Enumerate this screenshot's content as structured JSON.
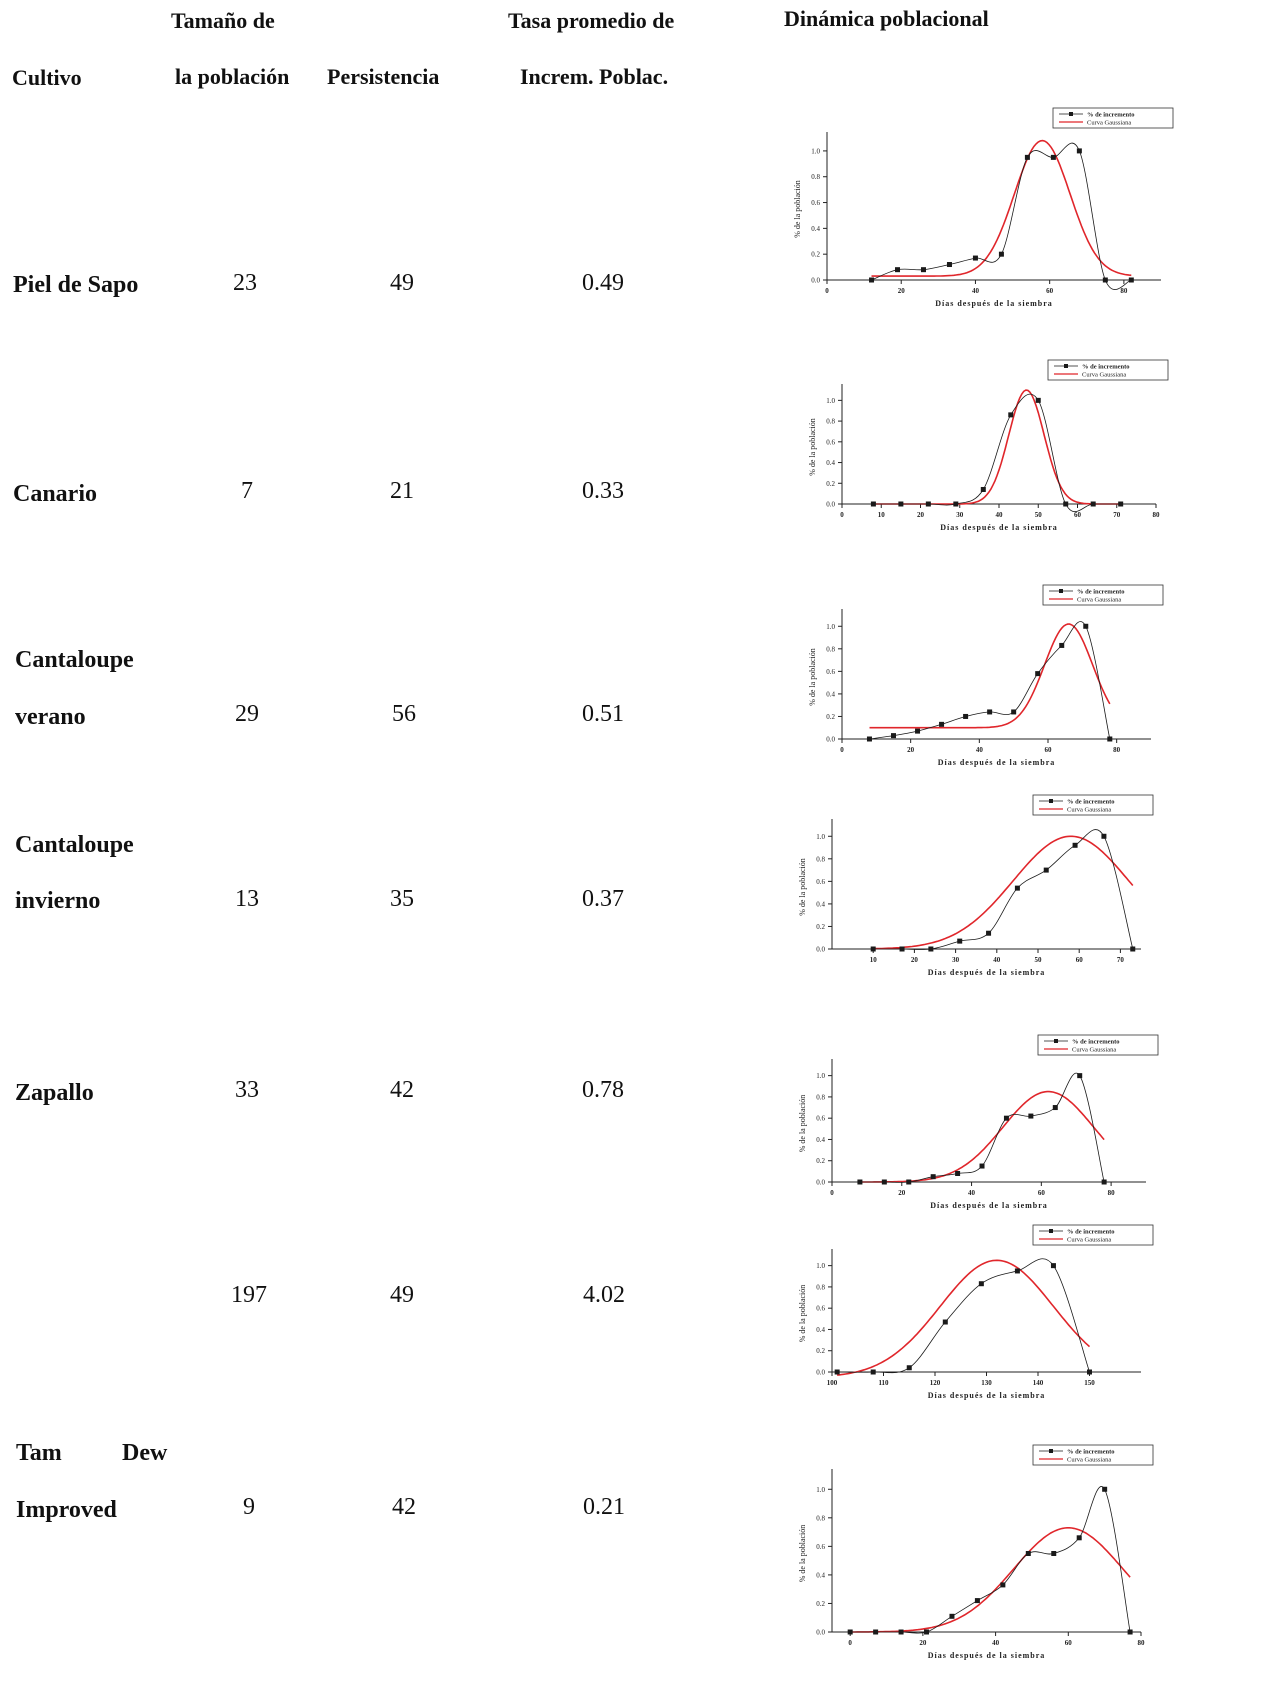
{
  "headers": {
    "cultivo": "Cultivo",
    "tamano_1": "Tamaño de",
    "tamano_2": "la población",
    "persistencia": "Persistencia",
    "tasa_1": "Tasa promedio de",
    "tasa_2": "Increm. Poblac.",
    "dinamica": "Dinámica poblacional"
  },
  "rows": [
    {
      "crop_1": "Piel de Sapo",
      "crop_2": "",
      "size": "23",
      "persistence": "49",
      "rate": "0.49"
    },
    {
      "crop_1": "Canario",
      "crop_2": "",
      "size": "7",
      "persistence": "21",
      "rate": "0.33"
    },
    {
      "crop_1": "Cantaloupe",
      "crop_2": "verano",
      "size": "29",
      "persistence": "56",
      "rate": "0.51"
    },
    {
      "crop_1": "Cantaloupe",
      "crop_2": "invierno",
      "size": "13",
      "persistence": "35",
      "rate": "0.37"
    },
    {
      "crop_1": "Zapallo",
      "crop_2": "",
      "size": "33",
      "persistence": "42",
      "rate": "0.78"
    },
    {
      "crop_1": "",
      "crop_2": "",
      "size": "197",
      "persistence": "49",
      "rate": "4.02"
    },
    {
      "crop_1": "Tam",
      "crop_1b": "Dew",
      "crop_2": "Improved",
      "size": "9",
      "persistence": "42",
      "rate": "0.21"
    }
  ],
  "colors": {
    "series1": "#1a1a1a",
    "series2": "#e0262b"
  },
  "chart_data": [
    {
      "type": "line",
      "xlabel": "Días después de la siembra",
      "ylabel": "% de la población",
      "xlim": [
        0,
        90
      ],
      "ylim": [
        0,
        1.1
      ],
      "xticks": [
        "0",
        "20",
        "40",
        "60",
        "80"
      ],
      "yticks": [
        "0.0",
        "0.2",
        "0.4",
        "0.6",
        "0.8",
        "1.0"
      ],
      "legend": [
        "% de incremento",
        "Curva Gaussiana"
      ],
      "points": [
        [
          12,
          0
        ],
        [
          19,
          0.08
        ],
        [
          26,
          0.08
        ],
        [
          33,
          0.12
        ],
        [
          40,
          0.17
        ],
        [
          47,
          0.2
        ],
        [
          54,
          0.95
        ],
        [
          61,
          0.95
        ],
        [
          68,
          1.0
        ],
        [
          75,
          0
        ],
        [
          82,
          0
        ]
      ],
      "gauss": {
        "y0": 0.03,
        "A": 1.05,
        "xc": 58,
        "w": 15
      }
    },
    {
      "type": "line",
      "xlabel": "Días después de la siembra",
      "ylabel": "% de la población",
      "xlim": [
        0,
        80
      ],
      "ylim": [
        0,
        1.1
      ],
      "xticks": [
        "0",
        "10",
        "20",
        "30",
        "40",
        "50",
        "60",
        "70",
        "80"
      ],
      "yticks": [
        "0.0",
        "0.2",
        "0.4",
        "0.6",
        "0.8",
        "1.0"
      ],
      "legend": [
        "% de incremento",
        "Curva Gaussiana"
      ],
      "points": [
        [
          8,
          0
        ],
        [
          15,
          0
        ],
        [
          22,
          0
        ],
        [
          29,
          0
        ],
        [
          36,
          0.14
        ],
        [
          43,
          0.86
        ],
        [
          50,
          1.0
        ],
        [
          57,
          0
        ],
        [
          64,
          0
        ],
        [
          71,
          0
        ]
      ],
      "gauss": {
        "y0": 0.0,
        "A": 1.1,
        "xc": 47,
        "w": 9
      }
    },
    {
      "type": "line",
      "xlabel": "Días después de la siembra",
      "ylabel": "% de la población",
      "xlim": [
        0,
        90
      ],
      "ylim": [
        0,
        1.1
      ],
      "xticks": [
        "0",
        "20",
        "40",
        "60",
        "80"
      ],
      "yticks": [
        "0.0",
        "0.2",
        "0.4",
        "0.6",
        "0.8",
        "1.0"
      ],
      "legend": [
        "% de incremento",
        "Curva Gaussiana"
      ],
      "points": [
        [
          8,
          0
        ],
        [
          15,
          0.03
        ],
        [
          22,
          0.07
        ],
        [
          29,
          0.13
        ],
        [
          36,
          0.2
        ],
        [
          43,
          0.24
        ],
        [
          50,
          0.24
        ],
        [
          57,
          0.58
        ],
        [
          64,
          0.83
        ],
        [
          71,
          1.0
        ],
        [
          78,
          0
        ]
      ],
      "gauss": {
        "y0": 0.1,
        "A": 0.92,
        "xc": 66,
        "w": 14
      }
    },
    {
      "type": "line",
      "xlabel": "Días después de la siembra",
      "ylabel": "% de la población",
      "xlim": [
        0,
        75
      ],
      "ylim": [
        0,
        1.1
      ],
      "xticks": [
        "10",
        "20",
        "30",
        "40",
        "50",
        "60",
        "70"
      ],
      "yticks": [
        "0.0",
        "0.2",
        "0.4",
        "0.6",
        "0.8",
        "1.0"
      ],
      "legend": [
        "% de incremento",
        "Curva Gaussiana"
      ],
      "points": [
        [
          10,
          0
        ],
        [
          17,
          0
        ],
        [
          24,
          0
        ],
        [
          31,
          0.07
        ],
        [
          38,
          0.14
        ],
        [
          45,
          0.54
        ],
        [
          52,
          0.7
        ],
        [
          59,
          0.92
        ],
        [
          66,
          1.0
        ],
        [
          73,
          0
        ]
      ],
      "gauss": {
        "y0": 0.0,
        "A": 1.0,
        "xc": 58,
        "w": 28
      }
    },
    {
      "type": "line",
      "xlabel": "Días después de la siembra",
      "ylabel": "% de la población",
      "xlim": [
        0,
        90
      ],
      "ylim": [
        0,
        1.1
      ],
      "xticks": [
        "0",
        "20",
        "40",
        "60",
        "80"
      ],
      "yticks": [
        "0.0",
        "0.2",
        "0.4",
        "0.6",
        "0.8",
        "1.0"
      ],
      "legend": [
        "% de incremento",
        "Curva Gaussiana"
      ],
      "points": [
        [
          8,
          0
        ],
        [
          15,
          0
        ],
        [
          22,
          0
        ],
        [
          29,
          0.05
        ],
        [
          36,
          0.08
        ],
        [
          43,
          0.15
        ],
        [
          50,
          0.6
        ],
        [
          57,
          0.62
        ],
        [
          64,
          0.7
        ],
        [
          71,
          1.0
        ],
        [
          78,
          0
        ]
      ],
      "gauss": {
        "y0": 0.0,
        "A": 0.85,
        "xc": 62,
        "w": 26
      }
    },
    {
      "type": "line",
      "xlabel": "Días después de la siembra",
      "ylabel": "% de la población",
      "xlim": [
        100,
        160
      ],
      "ylim": [
        0,
        1.1
      ],
      "xticks": [
        "100",
        "110",
        "120",
        "130",
        "140",
        "150"
      ],
      "yticks": [
        "0.0",
        "0.2",
        "0.4",
        "0.6",
        "0.8",
        "1.0"
      ],
      "legend": [
        "% de incremento",
        "Curva Gaussiana"
      ],
      "points": [
        [
          101,
          0
        ],
        [
          108,
          0
        ],
        [
          115,
          0.04
        ],
        [
          122,
          0.47
        ],
        [
          129,
          0.83
        ],
        [
          136,
          0.95
        ],
        [
          143,
          1.0
        ],
        [
          150,
          0
        ]
      ],
      "gauss": {
        "y0": -0.05,
        "A": 1.1,
        "xc": 132,
        "w": 22
      }
    },
    {
      "type": "line",
      "xlabel": "Días después de la siembra",
      "ylabel": "% de la población",
      "xlim": [
        -5,
        80
      ],
      "ylim": [
        0,
        1.1
      ],
      "xticks": [
        "0",
        "20",
        "40",
        "60",
        "80"
      ],
      "yticks": [
        "0.0",
        "0.2",
        "0.4",
        "0.6",
        "0.8",
        "1.0"
      ],
      "legend": [
        "% de incremento",
        "Curva Gaussiana"
      ],
      "points": [
        [
          0,
          0
        ],
        [
          7,
          0
        ],
        [
          14,
          0
        ],
        [
          21,
          0
        ],
        [
          28,
          0.11
        ],
        [
          35,
          0.22
        ],
        [
          42,
          0.33
        ],
        [
          49,
          0.55
        ],
        [
          56,
          0.55
        ],
        [
          63,
          0.66
        ],
        [
          70,
          1.0
        ],
        [
          77,
          0
        ]
      ],
      "gauss": {
        "y0": 0.0,
        "A": 0.73,
        "xc": 60,
        "w": 30
      }
    }
  ]
}
